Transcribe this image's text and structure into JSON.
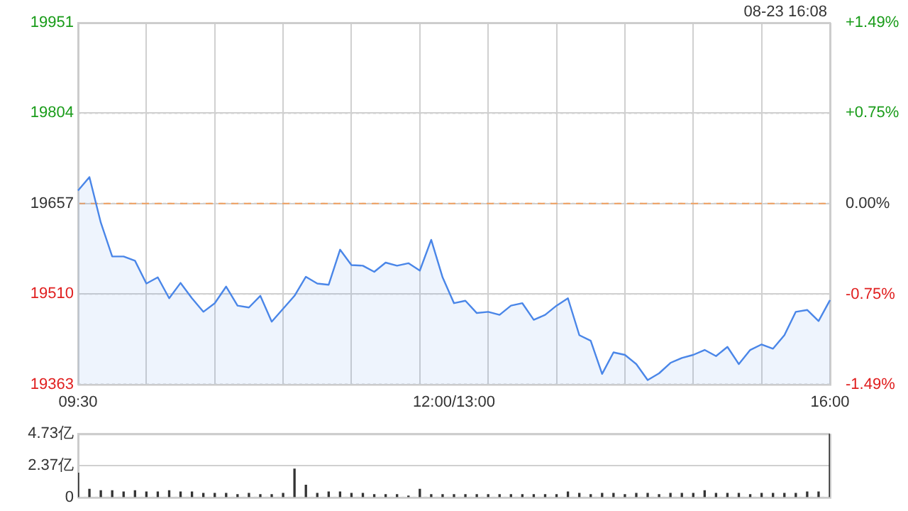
{
  "chart_data": [
    {
      "type": "area",
      "annotations": [
        "08-23 16:08"
      ],
      "categories": [
        "09:30",
        null,
        null,
        null,
        null,
        null,
        null,
        null,
        null,
        null,
        null,
        null,
        null,
        null,
        null,
        null,
        null,
        null,
        null,
        null,
        null,
        null,
        null,
        null,
        null,
        null,
        null,
        null,
        null,
        null,
        null,
        null,
        null,
        "12:00/13:00",
        null,
        null,
        null,
        null,
        null,
        null,
        null,
        null,
        null,
        null,
        null,
        null,
        null,
        null,
        null,
        null,
        null,
        null,
        null,
        null,
        null,
        null,
        null,
        null,
        null,
        null,
        null,
        null,
        null,
        null,
        null,
        null,
        "16:00"
      ],
      "series": [
        {
          "color": "#4a86e8",
          "values": [
            19678,
            19700,
            19626,
            19571,
            19571,
            19564,
            19527,
            19537,
            19503,
            19528,
            19503,
            19481,
            19495,
            19522,
            19491,
            19488,
            19507,
            19465,
            19486,
            19507,
            19538,
            19527,
            19525,
            19582,
            19557,
            19556,
            19546,
            19561,
            19556,
            19560,
            19548,
            19598,
            19537,
            19495,
            19499,
            19479,
            19481,
            19476,
            19491,
            19495,
            19468,
            19476,
            19491,
            19503,
            19443,
            19434,
            19380,
            19415,
            19411,
            19396,
            19370,
            19381,
            19398,
            19406,
            19411,
            19419,
            19409,
            19424,
            19396,
            19419,
            19428,
            19421,
            19443,
            19481,
            19484,
            19466,
            19500
          ]
        }
      ],
      "ylim": [
        19363,
        19951
      ],
      "yticks": [
        19363,
        19510,
        19657,
        19804,
        19951
      ],
      "y2lim": [
        -1.49,
        1.49
      ],
      "y2ticks": [
        {
          "value": -1.49,
          "label": "-1.49%"
        },
        {
          "value": -0.75,
          "label": "-0.75%"
        },
        {
          "value": 0,
          "label": "0.00%"
        },
        {
          "value": 0.75,
          "label": "+0.75%"
        },
        {
          "value": 1.49,
          "label": "+1.49%"
        }
      ],
      "ref_lines": [
        {
          "axis": "y",
          "value": 19657,
          "color": "#f0a060",
          "line_style": "dashed"
        }
      ],
      "grid": true
    },
    {
      "type": "bar",
      "tick_labels": "y",
      "grid": "y",
      "categories": [
        null,
        null,
        null,
        null,
        null,
        null,
        null,
        null,
        null,
        null,
        null,
        null,
        null,
        null,
        null,
        null,
        null,
        null,
        null,
        null,
        null,
        null,
        null,
        null,
        null,
        null,
        null,
        null,
        null,
        null,
        null,
        null,
        null,
        null,
        null,
        null,
        null,
        null,
        null,
        null,
        null,
        null,
        null,
        null,
        null,
        null,
        null,
        null,
        null,
        null,
        null,
        null,
        null,
        null,
        null,
        null,
        null,
        null,
        null,
        null,
        null,
        null,
        null,
        null,
        null,
        null,
        null
      ],
      "series": [
        {
          "color": "#333333",
          "values": [
            1.8,
            0.6,
            0.5,
            0.5,
            0.4,
            0.5,
            0.4,
            0.4,
            0.5,
            0.4,
            0.4,
            0.3,
            0.3,
            0.3,
            0.2,
            0.3,
            0.2,
            0.2,
            0.3,
            2.1,
            0.9,
            0.3,
            0.4,
            0.4,
            0.3,
            0.3,
            0.2,
            0.2,
            0.2,
            0.1,
            0.6,
            0.2,
            0.2,
            0.2,
            0.2,
            0.2,
            0.2,
            0.2,
            0.2,
            0.2,
            0.2,
            0.2,
            0.2,
            0.4,
            0.3,
            0.2,
            0.3,
            0.3,
            0.2,
            0.3,
            0.3,
            0.2,
            0.3,
            0.3,
            0.3,
            0.5,
            0.3,
            0.3,
            0.3,
            0.2,
            0.3,
            0.3,
            0.3,
            0.3,
            0.4,
            0.4,
            4.7
          ]
        }
      ],
      "ylim": [
        0,
        4.73
      ],
      "yticks": [
        0,
        {
          "value": 2.37,
          "label": "2.37亿"
        },
        {
          "value": 4.73,
          "label": "4.73亿"
        }
      ]
    }
  ]
}
